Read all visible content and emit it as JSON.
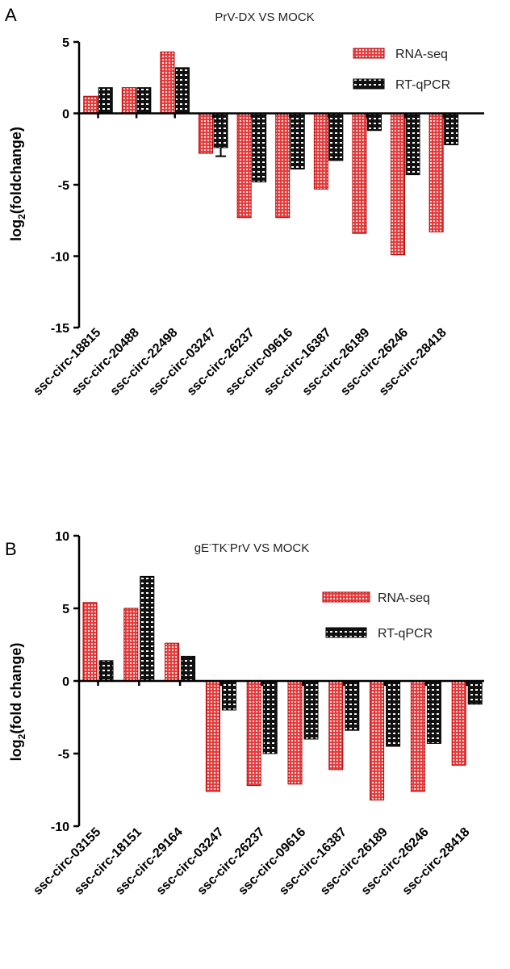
{
  "colors": {
    "rna": "#e83a3a",
    "rna_pattern": "#ffe2e2",
    "qpcr": "#111111",
    "qpcr_pattern": "#ffffff",
    "axis": "#000000"
  },
  "chart_data": [
    {
      "type": "bar",
      "panel": "A",
      "title": "PrV-DX VS MOCK",
      "xlabel": "",
      "ylabel": "log2(foldchange)",
      "ylabel_main": "log",
      "ylabel_sub": "2",
      "ylabel_rest": "(foldchange)",
      "ylim": [
        -15,
        5
      ],
      "yticks": [
        5,
        0,
        -5,
        -10,
        -15
      ],
      "ytick_labels": [
        "5",
        "0",
        "-5",
        "-10",
        "-15"
      ],
      "legend_position": "top-right",
      "categories": [
        "ssc-circ-18815",
        "ssc-circ-20488",
        "ssc-circ-22498",
        "ssc-circ-03247",
        "ssc-circ-26237",
        "ssc-circ-09616",
        "ssc-circ-16387",
        "ssc-circ-26189",
        "ssc-circ-26246",
        "ssc-circ-28418"
      ],
      "series": [
        {
          "name": "RNA-seq",
          "values": [
            1.2,
            1.8,
            4.3,
            -2.8,
            -7.3,
            -7.3,
            -5.3,
            -8.4,
            -9.9,
            -8.3
          ]
        },
        {
          "name": "RT-qPCR",
          "values": [
            1.8,
            1.8,
            3.2,
            -2.4,
            -4.8,
            -3.9,
            -3.3,
            -1.2,
            -4.3,
            -2.2
          ],
          "errors": [
            0,
            0,
            0,
            0.6,
            0,
            0,
            0,
            0,
            0,
            0
          ]
        }
      ]
    },
    {
      "type": "bar",
      "panel": "B",
      "title": "gE-TK-PrV VS MOCK",
      "title_parts": [
        "gE",
        "-",
        "TK",
        "-",
        "PrV VS MOCK"
      ],
      "xlabel": "",
      "ylabel": "log2(fold change)",
      "ylabel_main": "log",
      "ylabel_sub": "2",
      "ylabel_rest": "(fold change)",
      "ylim": [
        -10,
        10
      ],
      "yticks": [
        10,
        5,
        0,
        -5,
        -10
      ],
      "ytick_labels": [
        "10",
        "5",
        "0",
        "-5",
        "-10"
      ],
      "legend_position": "top-right",
      "categories": [
        "ssc-circ-03155",
        "ssc-circ-18151",
        "ssc-circ-29164",
        "ssc-circ-03247",
        "ssc-circ-26237",
        "ssc-circ-09616",
        "ssc-circ-16387",
        "ssc-circ-26189",
        "ssc-circ-26246",
        "ssc-circ-28418"
      ],
      "series": [
        {
          "name": "RNA-seq",
          "values": [
            5.4,
            5.0,
            2.6,
            -7.6,
            -7.2,
            -7.1,
            -6.1,
            -8.2,
            -7.6,
            -5.8
          ]
        },
        {
          "name": "RT-qPCR",
          "values": [
            1.4,
            7.2,
            1.7,
            -2.0,
            -5.0,
            -4.0,
            -3.4,
            -4.5,
            -4.3,
            -1.6
          ],
          "errors": [
            0,
            0,
            0,
            0,
            0,
            0,
            0,
            0,
            0,
            0
          ]
        }
      ]
    }
  ]
}
